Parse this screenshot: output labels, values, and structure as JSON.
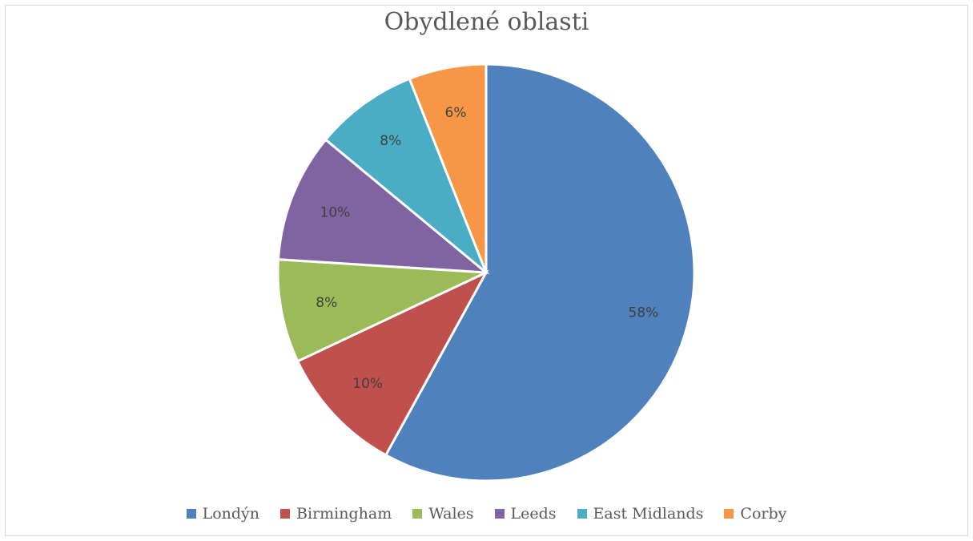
{
  "chart_data": {
    "type": "pie",
    "title": "Obydlené oblasti",
    "categories": [
      "Londýn",
      "Birmingham",
      "Wales",
      "Leeds",
      "East Midlands",
      "Corby"
    ],
    "values": [
      58,
      10,
      8,
      10,
      8,
      6
    ],
    "labels": [
      "58%",
      "10%",
      "8%",
      "10%",
      "8%",
      "6%"
    ],
    "colors": [
      "#4f81bd",
      "#c0504d",
      "#9bbb59",
      "#8064a2",
      "#4bacc6",
      "#f79646"
    ],
    "legend_position": "bottom"
  }
}
